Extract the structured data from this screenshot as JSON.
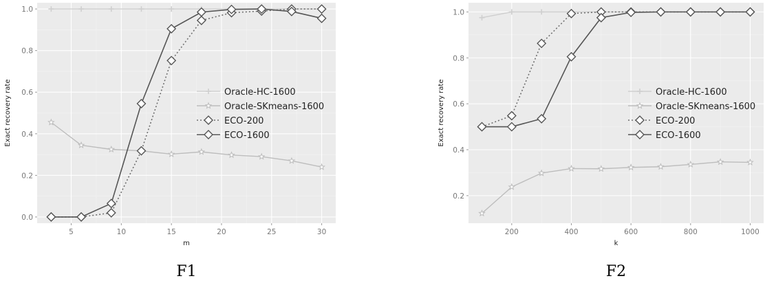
{
  "chart_data": [
    {
      "type": "line",
      "caption": "F1",
      "xlabel": "m",
      "ylabel": "Exact recovery rate",
      "xlim": [
        1.6,
        31.4
      ],
      "ylim": [
        -0.03,
        1.03
      ],
      "xticks": [
        5,
        10,
        15,
        20,
        25,
        30
      ],
      "yticks": [
        0.0,
        0.2,
        0.4,
        0.6,
        0.8,
        1.0
      ],
      "grid": true,
      "legend": "center-right",
      "x": [
        3,
        6,
        9,
        12,
        15,
        18,
        21,
        24,
        27,
        30
      ],
      "series": [
        {
          "name": "Oracle-HC-1600",
          "values": [
            1.0,
            1.0,
            1.0,
            1.0,
            1.0,
            1.0,
            1.0,
            1.0,
            1.0,
            1.0
          ],
          "color": "#cfcfcf",
          "dash": "solid",
          "marker": "cross"
        },
        {
          "name": "Oracle-SKmeans-1600",
          "values": [
            0.455,
            0.345,
            0.325,
            0.318,
            0.302,
            0.313,
            0.298,
            0.29,
            0.27,
            0.24
          ],
          "color": "#bdbdbd",
          "dash": "solid",
          "marker": "star"
        },
        {
          "name": "ECO-200",
          "values": [
            0.0,
            0.0,
            0.02,
            0.318,
            0.752,
            0.945,
            0.982,
            0.99,
            1.0,
            1.0
          ],
          "color": "#6f6f6f",
          "dash": "dotted",
          "marker": "diamond"
        },
        {
          "name": "ECO-1600",
          "values": [
            0.0,
            0.0,
            0.065,
            0.545,
            0.905,
            0.985,
            0.998,
            1.0,
            0.988,
            0.955
          ],
          "color": "#555555",
          "dash": "solid",
          "marker": "diamond"
        }
      ]
    },
    {
      "type": "line",
      "caption": "F2",
      "xlabel": "k",
      "ylabel": "Exact recovery rate",
      "xlim": [
        55,
        1045
      ],
      "ylim": [
        0.08,
        1.04
      ],
      "xticks": [
        200,
        400,
        600,
        800,
        1000
      ],
      "yticks": [
        0.2,
        0.4,
        0.6,
        0.8,
        1.0
      ],
      "grid": true,
      "legend": "center-right",
      "x": [
        100,
        200,
        300,
        400,
        500,
        600,
        700,
        800,
        900,
        1000
      ],
      "series": [
        {
          "name": "Oracle-HC-1600",
          "values": [
            0.975,
            1.0,
            1.0,
            1.0,
            1.0,
            1.0,
            1.0,
            1.0,
            1.0,
            1.0
          ],
          "color": "#cfcfcf",
          "dash": "solid",
          "marker": "cross"
        },
        {
          "name": "Oracle-SKmeans-1600",
          "values": [
            0.123,
            0.238,
            0.298,
            0.318,
            0.317,
            0.323,
            0.326,
            0.336,
            0.347,
            0.345
          ],
          "color": "#bdbdbd",
          "dash": "solid",
          "marker": "star"
        },
        {
          "name": "ECO-200",
          "values": [
            0.5,
            0.548,
            0.863,
            0.993,
            1.0,
            1.0,
            1.0,
            1.0,
            1.0,
            1.0
          ],
          "color": "#6f6f6f",
          "dash": "dotted",
          "marker": "diamond"
        },
        {
          "name": "ECO-1600",
          "values": [
            0.5,
            0.5,
            0.535,
            0.805,
            0.975,
            0.998,
            1.0,
            1.0,
            1.0,
            1.0
          ],
          "color": "#555555",
          "dash": "solid",
          "marker": "diamond"
        }
      ]
    }
  ]
}
